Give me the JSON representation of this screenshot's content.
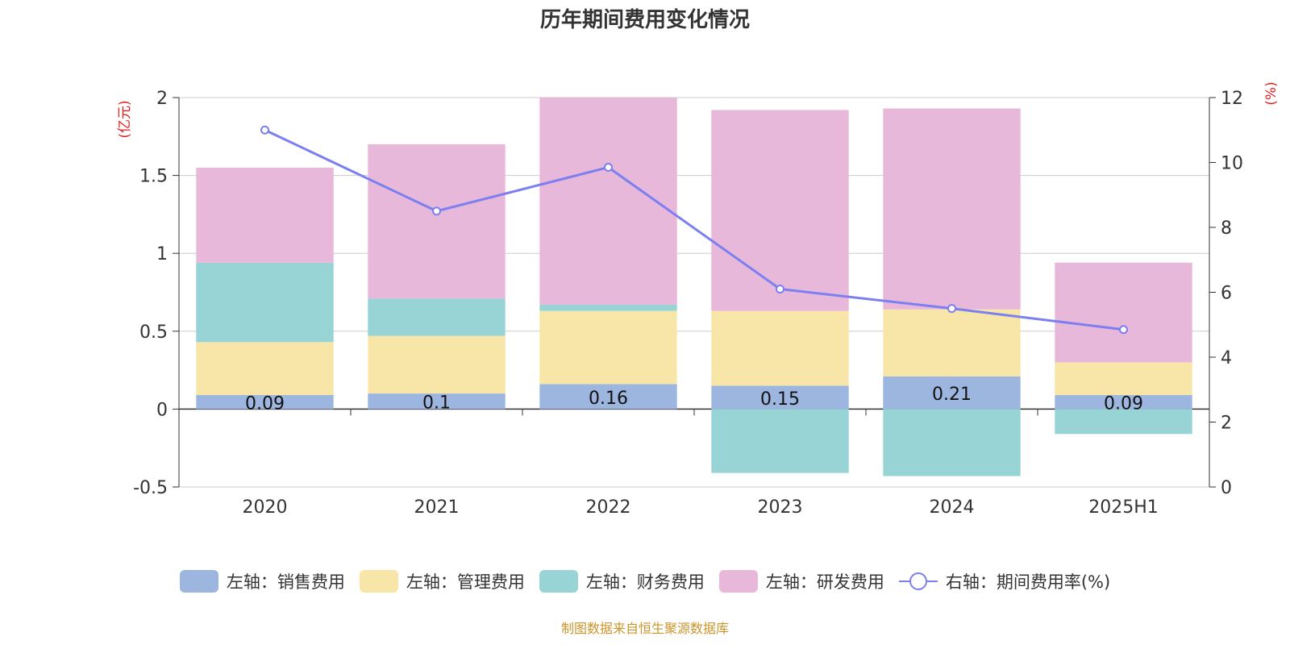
{
  "chart_data": {
    "type": "bar",
    "title": "历年期间费用变化情况",
    "categories": [
      "2020",
      "2021",
      "2022",
      "2023",
      "2024",
      "2025H1"
    ],
    "stacked": true,
    "left_axis": {
      "unit_label": "(亿元)",
      "ylim": [
        -0.5,
        2
      ],
      "ticks": [
        "-0.5",
        "0",
        "0.5",
        "1",
        "1.5",
        "2"
      ],
      "tick_values": [
        -0.5,
        0,
        0.5,
        1,
        1.5,
        2
      ]
    },
    "right_axis": {
      "unit_label": "(%)",
      "ylim": [
        0,
        12
      ],
      "ticks": [
        "0",
        "2",
        "4",
        "6",
        "8",
        "10",
        "12"
      ],
      "tick_values": [
        0,
        2,
        4,
        6,
        8,
        10,
        12
      ]
    },
    "series": [
      {
        "name": "左轴：销售费用",
        "axis": "left",
        "color": "#9db6e0",
        "values": [
          0.09,
          0.1,
          0.16,
          0.15,
          0.21,
          0.09
        ],
        "labels": [
          "0.09",
          "0.1",
          "0.16",
          "0.15",
          "0.21",
          "0.09"
        ]
      },
      {
        "name": "左轴：管理费用",
        "axis": "left",
        "color": "#f8e6a8",
        "values": [
          0.34,
          0.37,
          0.47,
          0.48,
          0.43,
          0.21
        ]
      },
      {
        "name": "左轴：财务费用",
        "axis": "left",
        "color": "#98d4d5",
        "values": [
          0.51,
          0.24,
          0.04,
          -0.41,
          -0.43,
          -0.16
        ]
      },
      {
        "name": "左轴：研发费用",
        "axis": "left",
        "color": "#e7b8da",
        "values": [
          0.61,
          0.99,
          1.33,
          1.29,
          1.29,
          0.64
        ]
      },
      {
        "name": "右轴：期间费用率(%)",
        "axis": "right",
        "type": "line",
        "color": "#7b7ff0",
        "values": [
          11.0,
          8.5,
          9.85,
          6.1,
          5.5,
          4.85
        ]
      }
    ],
    "grid": true,
    "legend_position": "bottom"
  },
  "source_note": "制图数据来自恒生聚源数据库"
}
